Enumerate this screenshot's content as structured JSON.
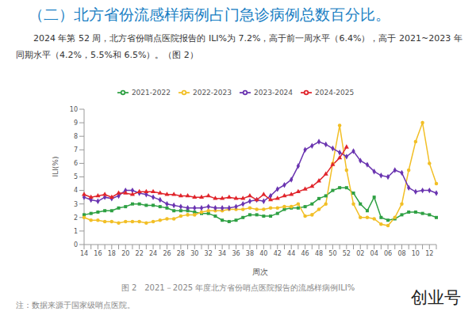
{
  "heading": "（二）北方省份流感样病例占门急诊病例总数百分比。",
  "paragraph": "2024 年第 52 周，北方省份哨点医院报告的 ILI%为 7.2%，高于前一周水平（6.4%），高于 2021~2023 年同期水平（4.2%，5.5%和 6.5%）。（图 2）",
  "chart_data": {
    "type": "line",
    "title": "图 2　2021－2025 年度北方省份哨点医院报告的流感样病例ILI%",
    "x_label": "周次",
    "y_label": "ILI(%)",
    "categories": [
      "14",
      null,
      "16",
      null,
      "18",
      null,
      "20",
      null,
      "22",
      null,
      "24",
      null,
      "26",
      null,
      "28",
      null,
      "30",
      null,
      "32",
      null,
      "34",
      null,
      "36",
      null,
      "38",
      null,
      "40",
      null,
      "42",
      null,
      "44",
      null,
      "46",
      null,
      "48",
      null,
      "50",
      null,
      "52",
      null,
      "02",
      null,
      "04",
      null,
      "06",
      null,
      "08",
      null,
      "10",
      null,
      "12",
      null
    ],
    "series": [
      {
        "name": "2021-2022",
        "color": "#2ea043",
        "marker": "square",
        "values": [
          2.2,
          2.3,
          2.4,
          2.5,
          2.5,
          2.7,
          2.8,
          3.0,
          3.0,
          2.9,
          2.9,
          2.8,
          2.7,
          2.5,
          2.5,
          2.5,
          2.4,
          2.3,
          2.3,
          2.1,
          1.8,
          1.7,
          1.8,
          2.0,
          2.2,
          2.2,
          2.1,
          2.1,
          2.3,
          2.6,
          2.7,
          2.7,
          2.8,
          3.0,
          3.4,
          3.6,
          4.0,
          4.2,
          4.2,
          3.8,
          3.0,
          2.5,
          3.5,
          2.0,
          1.8,
          1.9,
          2.2,
          2.4,
          2.4,
          2.3,
          2.2,
          2.0
        ]
      },
      {
        "name": "2022-2023",
        "color": "#f2bf26",
        "marker": "circle",
        "values": [
          2.0,
          1.8,
          1.8,
          1.7,
          1.7,
          1.6,
          1.7,
          1.7,
          1.7,
          1.6,
          1.7,
          1.8,
          1.9,
          1.9,
          2.1,
          2.2,
          2.2,
          2.4,
          2.5,
          2.5,
          2.5,
          2.6,
          2.6,
          2.6,
          2.7,
          2.6,
          2.6,
          2.7,
          2.7,
          2.8,
          2.8,
          3.0,
          2.1,
          2.2,
          2.6,
          3.0,
          6.0,
          8.8,
          5.5,
          3.0,
          2.0,
          2.0,
          1.9,
          1.5,
          1.4,
          2.0,
          3.0,
          5.5,
          7.6,
          9.0,
          6.0,
          4.5
        ]
      },
      {
        "name": "2023-2024",
        "color": "#6a34b0",
        "marker": "diamond",
        "values": [
          3.5,
          3.3,
          3.2,
          3.5,
          3.4,
          3.6,
          4.0,
          4.0,
          3.8,
          3.7,
          3.5,
          3.3,
          3.0,
          2.9,
          2.8,
          2.7,
          2.7,
          2.7,
          2.8,
          2.7,
          2.7,
          2.7,
          2.8,
          3.0,
          3.2,
          3.3,
          3.2,
          3.6,
          4.1,
          4.4,
          4.8,
          5.8,
          7.0,
          7.3,
          7.6,
          7.4,
          7.1,
          6.8,
          6.5,
          6.9,
          6.2,
          5.9,
          5.4,
          5.1,
          5.0,
          5.5,
          5.3,
          4.2,
          3.9,
          4.0,
          4.0,
          3.8
        ]
      },
      {
        "name": "2024-2025",
        "color": "#e0242b",
        "marker": "triangle",
        "values": [
          3.7,
          3.5,
          3.6,
          3.7,
          3.5,
          3.8,
          3.8,
          3.7,
          3.9,
          3.9,
          3.9,
          3.8,
          3.7,
          3.7,
          3.6,
          3.6,
          3.5,
          3.5,
          3.6,
          3.4,
          3.4,
          3.5,
          3.4,
          3.4,
          3.6,
          3.3,
          3.7,
          3.3,
          3.4,
          3.6,
          3.7,
          3.9,
          4.1,
          4.3,
          4.7,
          5.2,
          5.9,
          6.4,
          7.2,
          null,
          null,
          null,
          null,
          null,
          null,
          null,
          null,
          null,
          null,
          null,
          null,
          null
        ]
      }
    ],
    "ylim": [
      0,
      10
    ],
    "yticks": [
      0,
      1,
      2,
      3,
      4,
      5,
      6,
      7,
      8,
      9,
      10
    ],
    "grid": false,
    "legend": "top"
  },
  "note": "注：数据来源于国家级哨点医院。",
  "watermark": "创业号"
}
